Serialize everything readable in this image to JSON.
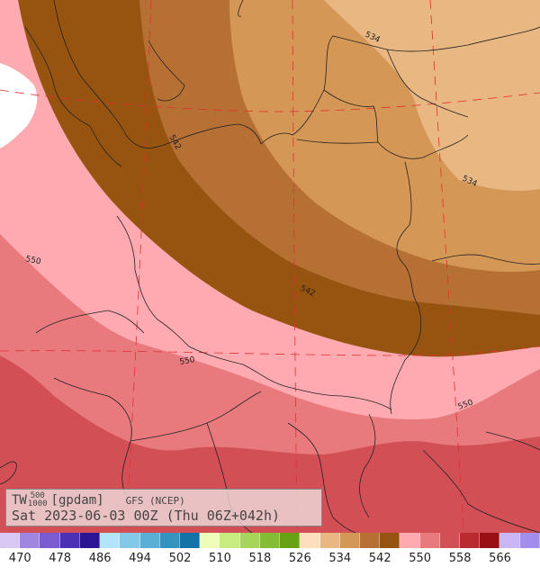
{
  "map": {
    "title_var": "TW",
    "level_top": "500",
    "level_bottom": "1000",
    "unit": "[gpdam]",
    "source": "GFS (NCEP)",
    "valid_time": "Sat 2023-06-03 00Z (Thu 06Z+042h)",
    "contour_labels": [
      "534",
      "534",
      "542",
      "542",
      "550",
      "550",
      "550"
    ]
  },
  "legend": {
    "labels": [
      "470",
      "478",
      "486",
      "494",
      "502",
      "510",
      "518",
      "526",
      "534",
      "542",
      "550",
      "558",
      "566"
    ],
    "colors": [
      "#d7c8f5",
      "#9f86e0",
      "#7a5cd0",
      "#4b2fb4",
      "#2c1594",
      "#b3e5fa",
      "#83c8e8",
      "#5aafd6",
      "#3593c0",
      "#1373a6",
      "#eefcba",
      "#c8ec80",
      "#a6d55a",
      "#84bd33",
      "#66a214",
      "#fde0bb",
      "#e9b782",
      "#d59756",
      "#b77034",
      "#975411",
      "#ffaab0",
      "#e87a7e",
      "#d25055",
      "#b82c30",
      "#991014",
      "#c8b6f6",
      "#a38ef0"
    ]
  }
}
